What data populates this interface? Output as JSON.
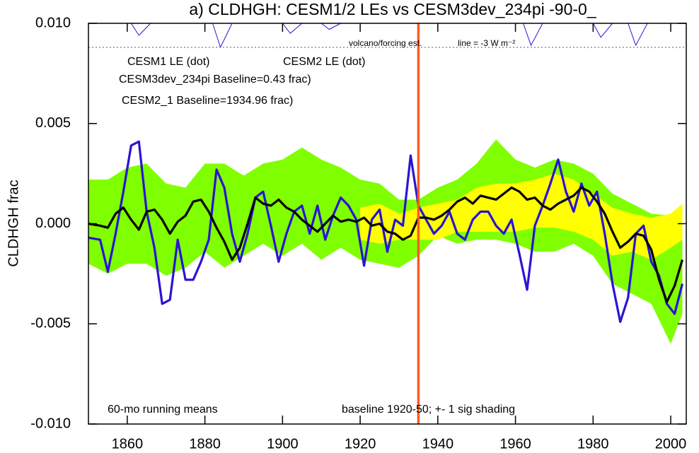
{
  "chart_data": {
    "type": "line",
    "title": "a) CLDHGH: CESM1/2 LEs vs CESM3dev_234pi -90-0_",
    "y_label": "CLDHGH frac",
    "xlim": [
      1850,
      2004
    ],
    "xticks": [
      1860,
      1880,
      1900,
      1920,
      1940,
      1960,
      1980,
      2000
    ],
    "ylim": [
      -0.01,
      0.01
    ],
    "yticks": [
      {
        "value": -0.01,
        "label": "-0.010"
      },
      {
        "value": -0.005,
        "label": "-0.005"
      },
      {
        "value": 0,
        "label": "0.000"
      },
      {
        "value": 0.005,
        "label": "0.005"
      },
      {
        "value": 0.01,
        "label": "0.010"
      }
    ],
    "bands": [
      {
        "name": "CESM2 LE (dot)",
        "color": "#80ff00",
        "x": [
          1850,
          1855,
          1860,
          1865,
          1870,
          1875,
          1880,
          1885,
          1890,
          1895,
          1900,
          1905,
          1910,
          1915,
          1920,
          1925,
          1930,
          1935,
          1940,
          1945,
          1950,
          1955,
          1960,
          1965,
          1970,
          1975,
          1980,
          1985,
          1990,
          1995,
          2000,
          2003
        ],
        "upper": [
          0.0022,
          0.0022,
          0.0028,
          0.003,
          0.002,
          0.0018,
          0.003,
          0.003,
          0.0024,
          0.003,
          0.0032,
          0.0038,
          0.0032,
          0.0028,
          0.0022,
          0.002,
          0.0012,
          0.0012,
          0.0018,
          0.0022,
          0.003,
          0.0042,
          0.0032,
          0.0028,
          0.0032,
          0.003,
          0.0025,
          0.0015,
          0.001,
          0.0005,
          0.0004,
          0.0002
        ],
        "lower": [
          -0.002,
          -0.0025,
          -0.002,
          -0.002,
          -0.0026,
          -0.0022,
          -0.0014,
          -0.0022,
          -0.0016,
          -0.001,
          -0.0016,
          -0.001,
          -0.0018,
          -0.0012,
          -0.0018,
          -0.002,
          -0.0022,
          -0.0016,
          -0.0006,
          -0.001,
          -0.0008,
          -0.0008,
          -0.001,
          -0.0014,
          -0.0014,
          -0.001,
          -0.0016,
          -0.003,
          -0.0035,
          -0.004,
          -0.006,
          -0.0045
        ]
      },
      {
        "name": "CESM1 LE (dot)",
        "color": "#ffff00",
        "x": [
          1920,
          1925,
          1930,
          1935,
          1940,
          1945,
          1950,
          1955,
          1960,
          1965,
          1970,
          1975,
          1980,
          1985,
          1990,
          1995,
          2000,
          2003
        ],
        "upper": [
          0.0008,
          0.001,
          0.0005,
          0.0008,
          0.001,
          0.0012,
          0.0018,
          0.002,
          0.002,
          0.0022,
          0.0025,
          0.0022,
          0.0015,
          0.0008,
          0.0005,
          0.0003,
          0.0005,
          0.001
        ],
        "lower": [
          -0.0008,
          -0.001,
          -0.0008,
          -0.0008,
          -0.0008,
          -0.0004,
          -0.0004,
          -0.0004,
          -0.0004,
          -0.0002,
          -0.0002,
          -0.0004,
          -0.0008,
          -0.0016,
          -0.0014,
          -0.0018,
          -0.0012,
          -0.0008
        ]
      }
    ],
    "x": [
      1850,
      1853,
      1855,
      1857,
      1859,
      1861,
      1863,
      1865,
      1867,
      1869,
      1871,
      1873,
      1875,
      1877,
      1879,
      1881,
      1883,
      1885,
      1887,
      1889,
      1891,
      1893,
      1895,
      1897,
      1899,
      1901,
      1903,
      1905,
      1907,
      1909,
      1911,
      1913,
      1915,
      1917,
      1919,
      1921,
      1923,
      1925,
      1927,
      1929,
      1931,
      1933,
      1935,
      1937,
      1939,
      1941,
      1943,
      1945,
      1947,
      1949,
      1951,
      1953,
      1955,
      1957,
      1959,
      1961,
      1963,
      1965,
      1967,
      1969,
      1971,
      1973,
      1975,
      1977,
      1979,
      1981,
      1983,
      1985,
      1987,
      1989,
      1991,
      1993,
      1995,
      1997,
      1999,
      2001,
      2003
    ],
    "series": [
      {
        "name": "CESM2_1 Baseline=1934.96 frac)",
        "color": "#2a14d4",
        "values": [
          -0.0007,
          -0.0008,
          -0.0024,
          -0.0005,
          0.0016,
          0.0039,
          0.0041,
          0.0006,
          -0.0012,
          -0.004,
          -0.0038,
          -0.0008,
          -0.0028,
          -0.0028,
          -0.0019,
          -0.0008,
          0.0027,
          0.0018,
          -0.0005,
          -0.0019,
          -0.0005,
          0.0013,
          0.0016,
          -0.0001,
          -0.0019,
          -0.0005,
          0.0006,
          0.0009,
          -0.0005,
          0.0009,
          -0.0008,
          0.0004,
          0.0013,
          0.0009,
          0.0002,
          -0.0021,
          0.0002,
          0.0007,
          -0.0014,
          0.0002,
          -0.0001,
          0.0034,
          0.0009,
          0.0002,
          -0.0005,
          -0.0001,
          0.0006,
          -0.0005,
          -0.0008,
          0.0002,
          0.0006,
          0.0006,
          -0.0001,
          -0.0005,
          0.0002,
          -0.0015,
          -0.0033,
          -0.0001,
          0.0009,
          0.002,
          0.0032,
          0.0016,
          0.0006,
          0.002,
          0.0009,
          0.0016,
          -0.0005,
          -0.003,
          -0.0049,
          -0.0037,
          -0.0005,
          -0.0001,
          -0.0019,
          -0.0026,
          -0.004,
          -0.0045,
          -0.003
        ]
      },
      {
        "name": "CESM3dev_234pi Baseline=0.43 frac)",
        "color": "#000000",
        "values": [
          0.0,
          -0.0001,
          -0.0002,
          0.0005,
          0.0008,
          0.0002,
          -0.0003,
          0.0006,
          0.0007,
          0.0002,
          -0.0005,
          0.0001,
          0.0004,
          0.0011,
          0.0012,
          0.0006,
          -0.0002,
          -0.0009,
          -0.0018,
          -0.0012,
          0.0,
          0.0013,
          0.001,
          0.0009,
          0.0012,
          0.0008,
          0.0006,
          0.0002,
          -0.0001,
          -0.0004,
          0.0,
          0.0004,
          0.0001,
          0.0002,
          0.0001,
          0.0003,
          -0.0001,
          0.0,
          -0.0004,
          -0.0005,
          -0.0008,
          -0.0006,
          0.0003,
          0.0003,
          0.0002,
          0.0004,
          0.0007,
          0.0011,
          0.0013,
          0.001,
          0.0014,
          0.0013,
          0.0012,
          0.0015,
          0.0018,
          0.0016,
          0.0012,
          0.0013,
          0.0009,
          0.0007,
          0.001,
          0.0012,
          0.0014,
          0.0018,
          0.0016,
          0.0011,
          0.0005,
          -0.0004,
          -0.0012,
          -0.0009,
          -0.0005,
          -0.0006,
          -0.0013,
          -0.0028,
          -0.0039,
          -0.0031,
          -0.0018
        ]
      }
    ],
    "legend_colors": [
      "#ffff00",
      "#80ff00",
      "#ff6020",
      "#2a14d4"
    ],
    "legend": [
      "CESM1 LE (dot)",
      "CESM2 LE (dot)",
      "CESM3dev_234pi Baseline=0.43 frac)",
      "CESM2_1 Baseline=1934.96 frac)"
    ],
    "volcano": {
      "color": "#2a14d4",
      "x": [
        1850,
        1861,
        1863,
        1866,
        1882,
        1884,
        1887,
        1900,
        1902,
        1905,
        1910,
        1912,
        1915,
        1962,
        1964,
        1967,
        1980,
        1982,
        1985,
        1989,
        1991,
        1994,
        2004
      ],
      "values": [
        0.01,
        0.01,
        0.0094,
        0.01,
        0.01,
        0.0088,
        0.01,
        0.01,
        0.0095,
        0.01,
        0.01,
        0.0097,
        0.01,
        0.01,
        0.0089,
        0.01,
        0.01,
        0.0093,
        0.01,
        0.01,
        0.0089,
        0.01,
        0.01
      ]
    },
    "reference_line": 0.0088,
    "vline": {
      "x": 1935,
      "color": "#ff5a1e"
    },
    "annotations": [
      "volcano/forcing est.",
      "line = -3 W m⁻²",
      "60-mo running means",
      "baseline 1920-50; +- 1 sig shading"
    ]
  }
}
